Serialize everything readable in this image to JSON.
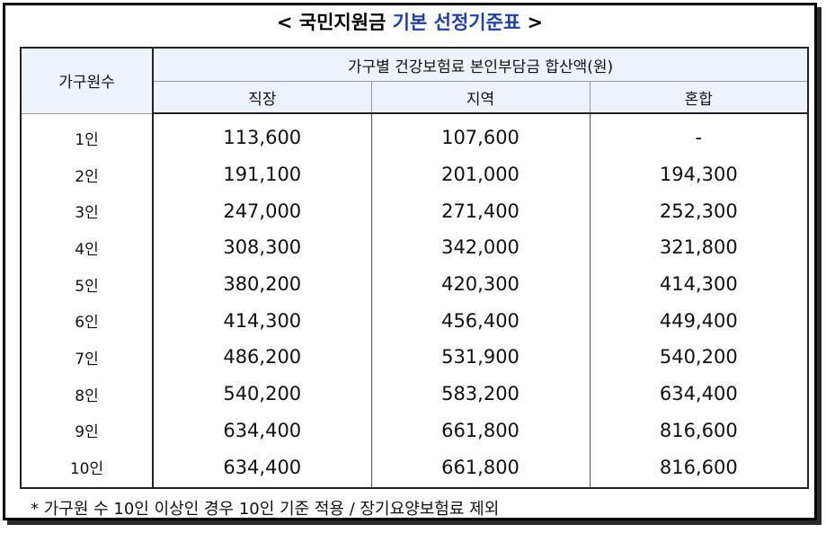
{
  "title": {
    "prefix": "< 국민지원금 ",
    "accent": "기본 선정기준표",
    "suffix": " >"
  },
  "table": {
    "header_household": "가구원수",
    "header_group": "가구별 건강보험료 본인부담금 합산액(원)",
    "columns": [
      "직장",
      "지역",
      "혼합"
    ],
    "rows": [
      {
        "label": "1인",
        "values": [
          "113,600",
          "107,600",
          "-"
        ]
      },
      {
        "label": "2인",
        "values": [
          "191,100",
          "201,000",
          "194,300"
        ]
      },
      {
        "label": "3인",
        "values": [
          "247,000",
          "271,400",
          "252,300"
        ]
      },
      {
        "label": "4인",
        "values": [
          "308,300",
          "342,000",
          "321,800"
        ]
      },
      {
        "label": "5인",
        "values": [
          "380,200",
          "420,300",
          "414,300"
        ]
      },
      {
        "label": "6인",
        "values": [
          "414,300",
          "456,400",
          "449,400"
        ]
      },
      {
        "label": "7인",
        "values": [
          "486,200",
          "531,900",
          "540,200"
        ]
      },
      {
        "label": "8인",
        "values": [
          "540,200",
          "583,200",
          "634,400"
        ]
      },
      {
        "label": "9인",
        "values": [
          "634,400",
          "661,800",
          "816,600"
        ]
      },
      {
        "label": "10인",
        "values": [
          "634,400",
          "661,800",
          "816,600"
        ]
      }
    ]
  },
  "footnote": "* 가구원 수 10인 이상인 경우 10인 기준 적용 / 장기요양보험료 제외",
  "colors": {
    "accent": "#1f3fb3",
    "header_bg": "#eef3fa",
    "border": "#000000"
  }
}
